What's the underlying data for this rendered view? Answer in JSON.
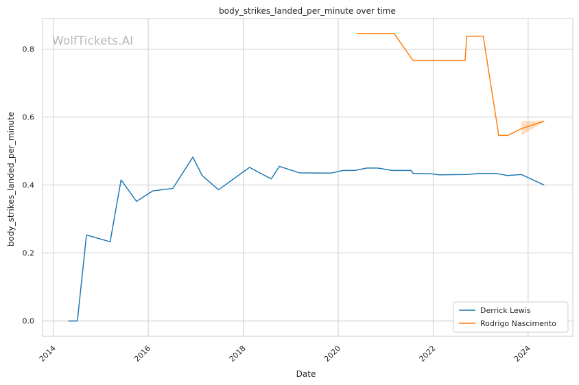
{
  "chart_data": {
    "type": "line",
    "title": "body_strikes_landed_per_minute over time",
    "xlabel": "Date",
    "ylabel": "body_strikes_landed_per_minute",
    "watermark": "WolfTickets.AI",
    "x_ticks": [
      "2014",
      "2016",
      "2018",
      "2020",
      "2022",
      "2024"
    ],
    "y_ticks": [
      "0.0",
      "0.2",
      "0.4",
      "0.6",
      "0.8"
    ],
    "xlim": [
      "2013-10-10",
      "2024-12-10"
    ],
    "ylim": [
      -0.045,
      0.89
    ],
    "grid": true,
    "legend_position": "lower-right",
    "series": [
      {
        "name": "Derrick Lewis",
        "color": "#1f77b4",
        "points": [
          [
            "2014-04-26",
            0.0
          ],
          [
            "2014-07-05",
            0.0
          ],
          [
            "2014-09-13",
            0.253
          ],
          [
            "2015-03-14",
            0.233
          ],
          [
            "2015-06-06",
            0.415
          ],
          [
            "2015-10-03",
            0.352
          ],
          [
            "2016-02-06",
            0.383
          ],
          [
            "2016-07-08",
            0.39
          ],
          [
            "2016-12-09",
            0.482
          ],
          [
            "2017-02-19",
            0.428
          ],
          [
            "2017-06-25",
            0.386
          ],
          [
            "2018-02-18",
            0.452
          ],
          [
            "2018-08-04",
            0.418
          ],
          [
            "2018-10-06",
            0.455
          ],
          [
            "2019-03-09",
            0.436
          ],
          [
            "2019-11-02",
            0.435
          ],
          [
            "2020-02-08",
            0.443
          ],
          [
            "2020-05-09",
            0.443
          ],
          [
            "2020-08-08",
            0.45
          ],
          [
            "2020-10-31",
            0.45
          ],
          [
            "2021-02-20",
            0.443
          ],
          [
            "2021-07-17",
            0.443
          ],
          [
            "2021-07-31",
            0.434
          ],
          [
            "2021-12-18",
            0.433
          ],
          [
            "2022-02-19",
            0.43
          ],
          [
            "2022-09-17",
            0.431
          ],
          [
            "2022-12-24",
            0.434
          ],
          [
            "2023-04-29",
            0.434
          ],
          [
            "2023-07-29",
            0.428
          ],
          [
            "2023-11-11",
            0.431
          ],
          [
            "2024-05-04",
            0.4
          ]
        ]
      },
      {
        "name": "Rodrigo Nascimento",
        "color": "#ff7f0e",
        "points": [
          [
            "2020-05-23",
            0.846
          ],
          [
            "2021-03-06",
            0.846
          ],
          [
            "2021-07-31",
            0.766
          ],
          [
            "2022-09-03",
            0.766
          ],
          [
            "2022-09-17",
            0.838
          ],
          [
            "2023-01-21",
            0.838
          ],
          [
            "2023-05-20",
            0.546
          ],
          [
            "2023-07-29",
            0.546
          ],
          [
            "2023-11-11",
            0.566
          ],
          [
            "2024-05-04",
            0.588
          ]
        ],
        "band": [
          [
            "2023-11-11",
            0.546,
            0.588
          ],
          [
            "2024-05-04",
            0.586,
            0.59
          ]
        ]
      }
    ]
  }
}
